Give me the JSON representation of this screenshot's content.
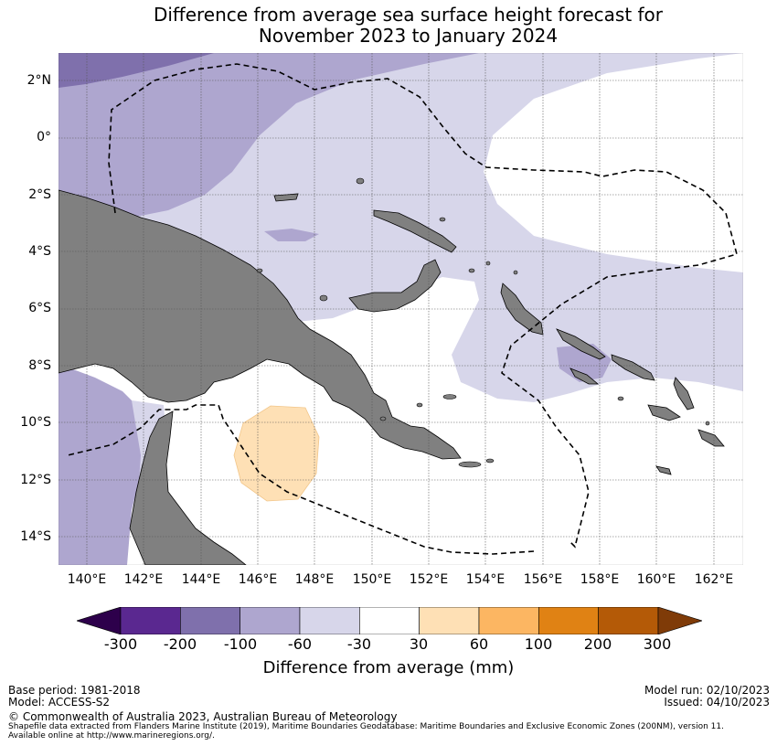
{
  "title": {
    "line1": "Difference from average sea surface height forecast for",
    "line2": "November 2023 to January 2024"
  },
  "map": {
    "lat_labels": [
      "2°N",
      "0°",
      "2°S",
      "4°S",
      "6°S",
      "8°S",
      "10°S",
      "12°S",
      "14°S"
    ],
    "lon_labels": [
      "140°E",
      "142°E",
      "144°E",
      "146°E",
      "148°E",
      "150°E",
      "152°E",
      "154°E",
      "156°E",
      "158°E",
      "160°E",
      "162°E"
    ],
    "colors": {
      "land": "#808080",
      "band_-200_-100": "#7f70ac",
      "band_-100_-60": "#aea6cf",
      "band_-60_-30": "#d7d6ea",
      "band_-30_30": "#ffffff",
      "band_30_60": "#fee0b5"
    }
  },
  "colorbar": {
    "ticks": [
      "-300",
      "-200",
      "-100",
      "-60",
      "-30",
      "30",
      "60",
      "100",
      "200",
      "300"
    ],
    "colors": [
      "#5a2890",
      "#7f70ac",
      "#aea6cf",
      "#d7d6ea",
      "#ffffff",
      "#fee0b5",
      "#fcb662",
      "#e08214",
      "#b45a07"
    ],
    "under_color": "#2d004b",
    "over_color": "#7f3b08",
    "label": "Difference from average (mm)"
  },
  "footer": {
    "base_period": "Base period: 1981-2018",
    "model": "Model: ACCESS-S2",
    "model_run": "Model run: 02/10/2023",
    "issued": "Issued: 04/10/2023",
    "copyright": "© Commonwealth of Australia 2023, Australian Bureau of Meteorology",
    "source_line1": "Shapefile data extracted from Flanders Marine Institute (2019), Maritime Boundaries Geodatabase: Maritime Boundaries and Exclusive Economic Zones (200NM), version 11.",
    "source_line2": "Available online at http://www.marineregions.org/."
  }
}
